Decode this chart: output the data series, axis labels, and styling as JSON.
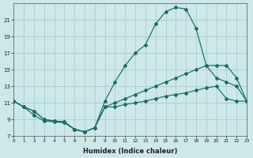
{
  "xlabel": "Humidex (Indice chaleur)",
  "bg_color": "#cce8e8",
  "grid_color": "#aacccc",
  "line_color": "#1a6b6b",
  "xlim": [
    0,
    23
  ],
  "ylim": [
    7,
    23
  ],
  "xticks": [
    0,
    1,
    2,
    3,
    4,
    5,
    6,
    7,
    8,
    9,
    10,
    11,
    12,
    13,
    14,
    15,
    16,
    17,
    18,
    19,
    20,
    21,
    22,
    23
  ],
  "yticks": [
    7,
    9,
    11,
    13,
    15,
    17,
    19,
    21
  ],
  "line_top_x": [
    0,
    1,
    2,
    3,
    4,
    5,
    6,
    7,
    8,
    9,
    10,
    11,
    12,
    13,
    14,
    15,
    16,
    17,
    18,
    19,
    20,
    21,
    22,
    23
  ],
  "line_top_y": [
    11.2,
    10.5,
    10.0,
    9.0,
    8.8,
    8.7,
    7.8,
    7.5,
    8.0,
    11.2,
    13.5,
    15.5,
    17.0,
    18.0,
    20.5,
    22.0,
    22.5,
    22.3,
    20.0,
    15.5,
    15.5,
    15.5,
    14.0,
    11.2
  ],
  "line_mid_x": [
    0,
    1,
    2,
    3,
    4,
    5,
    6,
    7,
    8,
    9,
    10,
    11,
    12,
    13,
    14,
    15,
    16,
    17,
    18,
    19,
    20,
    21,
    22,
    23
  ],
  "line_mid_y": [
    11.2,
    10.5,
    10.0,
    9.0,
    8.8,
    8.7,
    7.8,
    7.5,
    8.0,
    10.5,
    11.0,
    11.5,
    12.0,
    12.5,
    13.0,
    13.5,
    14.0,
    14.5,
    15.0,
    15.5,
    14.0,
    13.5,
    13.0,
    11.2
  ],
  "line_bot_x": [
    0,
    1,
    2,
    3,
    4,
    5,
    6,
    7,
    8,
    9,
    10,
    11,
    12,
    13,
    14,
    15,
    16,
    17,
    18,
    19,
    20,
    21,
    22,
    23
  ],
  "line_bot_y": [
    11.2,
    10.5,
    9.5,
    8.8,
    8.7,
    8.6,
    7.8,
    7.5,
    8.0,
    10.5,
    10.5,
    10.8,
    11.0,
    11.2,
    11.5,
    11.8,
    12.0,
    12.2,
    12.5,
    12.8,
    13.0,
    11.5,
    11.2,
    11.2
  ]
}
